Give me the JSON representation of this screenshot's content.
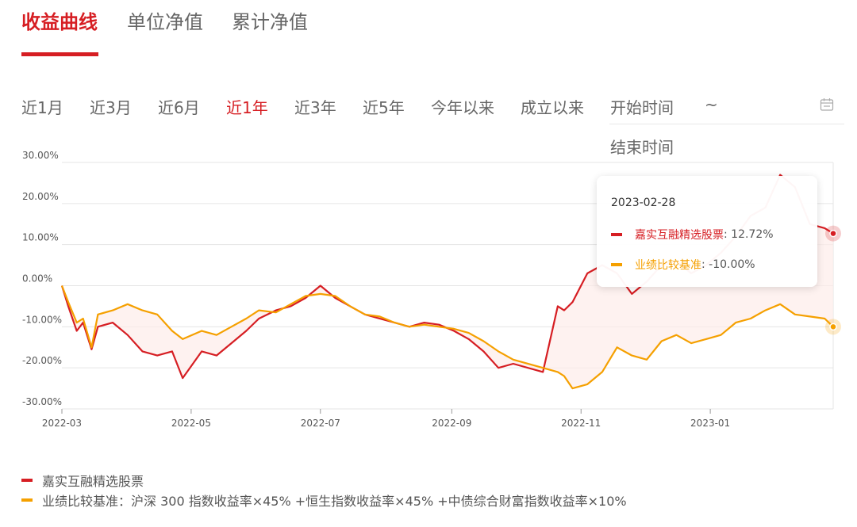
{
  "tabs": [
    {
      "label": "收益曲线",
      "active": true
    },
    {
      "label": "单位净值",
      "active": false
    },
    {
      "label": "累计净值",
      "active": false
    }
  ],
  "ranges": [
    {
      "label": "近1月",
      "active": false
    },
    {
      "label": "近3月",
      "active": false
    },
    {
      "label": "近6月",
      "active": false
    },
    {
      "label": "近1年",
      "active": true
    },
    {
      "label": "近3年",
      "active": false
    },
    {
      "label": "近5年",
      "active": false
    },
    {
      "label": "今年以来",
      "active": false
    },
    {
      "label": "成立以来",
      "active": false
    }
  ],
  "date_range": {
    "start_placeholder": "开始时间",
    "separator": "~",
    "end_placeholder": "结束时间",
    "icon": "calendar-icon"
  },
  "colors": {
    "fund": "#d61e23",
    "benchmark": "#f5a000",
    "grid": "#e5e5e5",
    "fill": "#fdecea"
  },
  "tooltip": {
    "date": "2023-02-28",
    "rows": [
      {
        "name": "嘉实互融精选股票",
        "value": ": 12.72%"
      },
      {
        "name": "业绩比较基准",
        "value": ": -10.00%"
      }
    ]
  },
  "legend": [
    {
      "label": "嘉实互融精选股票"
    },
    {
      "label": "业绩比较基准：沪深 300 指数收益率×45% +恒生指数收益率×45% +中债综合财富指数收益率×10%"
    }
  ],
  "chart_data": {
    "type": "line",
    "y_tick_labels": [
      "30.00%",
      "20.00%",
      "10.00%",
      "0.00%",
      "-10.00%",
      "-20.00%",
      "-30.00%"
    ],
    "x_tick_labels": [
      "2022-03",
      "2022-05",
      "2022-07",
      "2022-09",
      "2022-11",
      "2023-01"
    ],
    "ylim": [
      -30,
      30
    ],
    "grid": true,
    "x": [
      "2022-03-01",
      "2022-03-04",
      "2022-03-08",
      "2022-03-11",
      "2022-03-15",
      "2022-03-18",
      "2022-03-25",
      "2022-04-01",
      "2022-04-08",
      "2022-04-15",
      "2022-04-22",
      "2022-04-27",
      "2022-05-06",
      "2022-05-13",
      "2022-05-20",
      "2022-05-27",
      "2022-06-02",
      "2022-06-10",
      "2022-06-17",
      "2022-06-24",
      "2022-07-01",
      "2022-07-08",
      "2022-07-15",
      "2022-07-22",
      "2022-07-29",
      "2022-08-05",
      "2022-08-12",
      "2022-08-19",
      "2022-08-26",
      "2022-09-02",
      "2022-09-09",
      "2022-09-16",
      "2022-09-23",
      "2022-09-30",
      "2022-10-14",
      "2022-10-21",
      "2022-10-24",
      "2022-10-28",
      "2022-11-04",
      "2022-11-11",
      "2022-11-18",
      "2022-11-25",
      "2022-12-02",
      "2022-12-09",
      "2022-12-16",
      "2022-12-23",
      "2022-12-30",
      "2023-01-06",
      "2023-01-13",
      "2023-01-20",
      "2023-01-27",
      "2023-02-03",
      "2023-02-10",
      "2023-02-17",
      "2023-02-24",
      "2023-02-28"
    ],
    "series": [
      {
        "name": "嘉实互融精选股票",
        "color": "#d61e23",
        "values": [
          0.0,
          -5.0,
          -11.0,
          -9.0,
          -15.5,
          -10.0,
          -9.0,
          -12.0,
          -16.0,
          -17.0,
          -16.0,
          -22.5,
          -16.0,
          -17.0,
          -14.0,
          -11.0,
          -8.0,
          -6.0,
          -5.0,
          -3.0,
          0.0,
          -3.0,
          -5.0,
          -7.0,
          -8.0,
          -9.0,
          -10.0,
          -9.0,
          -9.5,
          -11.0,
          -13.0,
          -16.0,
          -20.0,
          -19.0,
          -21.0,
          -5.0,
          -6.0,
          -4.0,
          3.0,
          5.0,
          3.0,
          -2.0,
          1.0,
          5.0,
          6.0,
          3.0,
          5.0,
          8.0,
          12.0,
          17.0,
          19.0,
          27.0,
          24.0,
          15.0,
          14.0,
          12.72
        ]
      },
      {
        "name": "业绩比较基准",
        "color": "#f5a000",
        "values": [
          0.0,
          -4.0,
          -9.0,
          -8.0,
          -15.0,
          -7.0,
          -6.0,
          -4.5,
          -6.0,
          -7.0,
          -11.0,
          -13.0,
          -11.0,
          -12.0,
          -10.0,
          -8.0,
          -6.0,
          -6.5,
          -4.5,
          -2.5,
          -2.0,
          -2.5,
          -5.0,
          -7.0,
          -7.5,
          -9.0,
          -10.0,
          -9.5,
          -10.0,
          -10.5,
          -11.5,
          -13.5,
          -16.0,
          -18.0,
          -20.0,
          -21.0,
          -22.0,
          -25.0,
          -24.0,
          -21.0,
          -15.0,
          -17.0,
          -18.0,
          -13.5,
          -12.0,
          -14.0,
          -13.0,
          -12.0,
          -9.0,
          -8.0,
          -6.0,
          -4.5,
          -7.0,
          -7.5,
          -8.0,
          -10.0
        ]
      }
    ]
  }
}
